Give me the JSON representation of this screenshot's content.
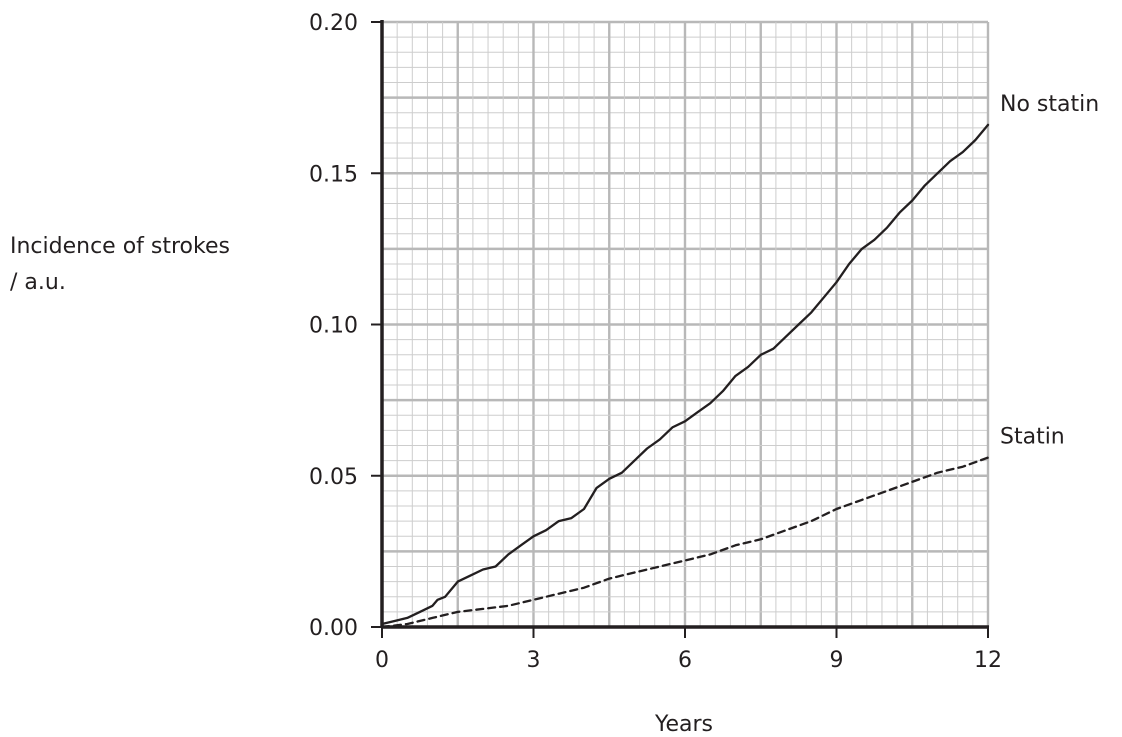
{
  "chart_data": {
    "type": "line",
    "ylabel": "Incidence of strokes",
    "yunit": "/ a.u.",
    "xlabel": "Years",
    "xlim": [
      0,
      12
    ],
    "ylim": [
      0,
      0.2
    ],
    "xticks": [
      "0",
      "3",
      "6",
      "9",
      "12"
    ],
    "xtick_values": [
      0,
      3,
      6,
      9,
      12
    ],
    "yticks": [
      "0.00",
      "0.05",
      "0.10",
      "0.15",
      "0.20"
    ],
    "ytick_values": [
      0,
      0.05,
      0.1,
      0.15,
      0.2
    ],
    "grid": true,
    "series": [
      {
        "name": "No statin",
        "style": "solid",
        "color": "#231f20",
        "x": [
          0,
          0.25,
          0.5,
          0.75,
          1.0,
          1.1,
          1.25,
          1.5,
          1.75,
          2.0,
          2.25,
          2.5,
          2.75,
          3.0,
          3.25,
          3.5,
          3.75,
          4.0,
          4.25,
          4.5,
          4.75,
          5.0,
          5.25,
          5.5,
          5.75,
          6.0,
          6.25,
          6.5,
          6.75,
          7.0,
          7.25,
          7.5,
          7.75,
          8.0,
          8.25,
          8.5,
          8.75,
          9.0,
          9.25,
          9.5,
          9.75,
          10.0,
          10.25,
          10.5,
          10.75,
          11.0,
          11.25,
          11.5,
          11.75,
          12.0
        ],
        "y": [
          0.001,
          0.002,
          0.003,
          0.005,
          0.007,
          0.009,
          0.01,
          0.015,
          0.017,
          0.019,
          0.02,
          0.024,
          0.027,
          0.03,
          0.032,
          0.035,
          0.036,
          0.039,
          0.046,
          0.049,
          0.051,
          0.055,
          0.059,
          0.062,
          0.066,
          0.068,
          0.071,
          0.074,
          0.078,
          0.083,
          0.086,
          0.09,
          0.092,
          0.096,
          0.1,
          0.104,
          0.109,
          0.114,
          0.12,
          0.125,
          0.128,
          0.132,
          0.137,
          0.141,
          0.146,
          0.15,
          0.154,
          0.157,
          0.161,
          0.166
        ]
      },
      {
        "name": "Statin",
        "style": "dashed",
        "color": "#231f20",
        "x": [
          0,
          0.5,
          1.0,
          1.5,
          2.0,
          2.5,
          3.0,
          3.5,
          4.0,
          4.5,
          5.0,
          5.5,
          6.0,
          6.5,
          7.0,
          7.5,
          8.0,
          8.5,
          9.0,
          9.5,
          10.0,
          10.5,
          11.0,
          11.5,
          12.0
        ],
        "y": [
          0.0,
          0.001,
          0.003,
          0.005,
          0.006,
          0.007,
          0.009,
          0.011,
          0.013,
          0.016,
          0.018,
          0.02,
          0.022,
          0.024,
          0.027,
          0.029,
          0.032,
          0.035,
          0.039,
          0.042,
          0.045,
          0.048,
          0.051,
          0.053,
          0.056
        ]
      }
    ]
  }
}
